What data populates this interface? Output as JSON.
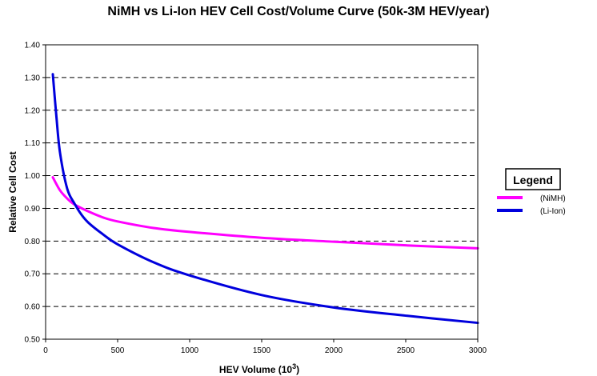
{
  "chart_data": {
    "type": "line",
    "title": "NiMH vs Li-Ion HEV Cell Cost/Volume Curve (50k-3M HEV/year)",
    "xlabel": "HEV Volume (10",
    "xlabel_sup": "3",
    "xlabel_end": ")",
    "ylabel": "Relative Cell Cost",
    "xlim": [
      0,
      3000
    ],
    "ylim": [
      0.5,
      1.4
    ],
    "x_ticks": [
      "0",
      "500",
      "1000",
      "1500",
      "2000",
      "2500",
      "3000"
    ],
    "y_ticks": [
      "0.50",
      "0.60",
      "0.70",
      "0.80",
      "0.90",
      "1.00",
      "1.10",
      "1.20",
      "1.30",
      "1.40"
    ],
    "grid": "horizontal-dashed",
    "legend": {
      "title": "Legend",
      "placement": "right",
      "entries": [
        "(NiMH)",
        "(Li-Ion)"
      ]
    },
    "series": [
      {
        "name": "(NiMH)",
        "color": "#ff00ff",
        "x": [
          50,
          100,
          150,
          200,
          300,
          400,
          500,
          750,
          1000,
          1500,
          2000,
          2500,
          3000
        ],
        "y": [
          0.995,
          0.955,
          0.93,
          0.912,
          0.89,
          0.872,
          0.86,
          0.84,
          0.828,
          0.81,
          0.798,
          0.787,
          0.778
        ]
      },
      {
        "name": "(Li-Ion)",
        "color": "#0000dd",
        "x": [
          50,
          75,
          100,
          150,
          200,
          250,
          300,
          400,
          500,
          750,
          1000,
          1500,
          2000,
          2500,
          3000
        ],
        "y": [
          1.31,
          1.18,
          1.07,
          0.96,
          0.915,
          0.88,
          0.855,
          0.82,
          0.79,
          0.735,
          0.695,
          0.635,
          0.597,
          0.572,
          0.55
        ]
      }
    ]
  }
}
